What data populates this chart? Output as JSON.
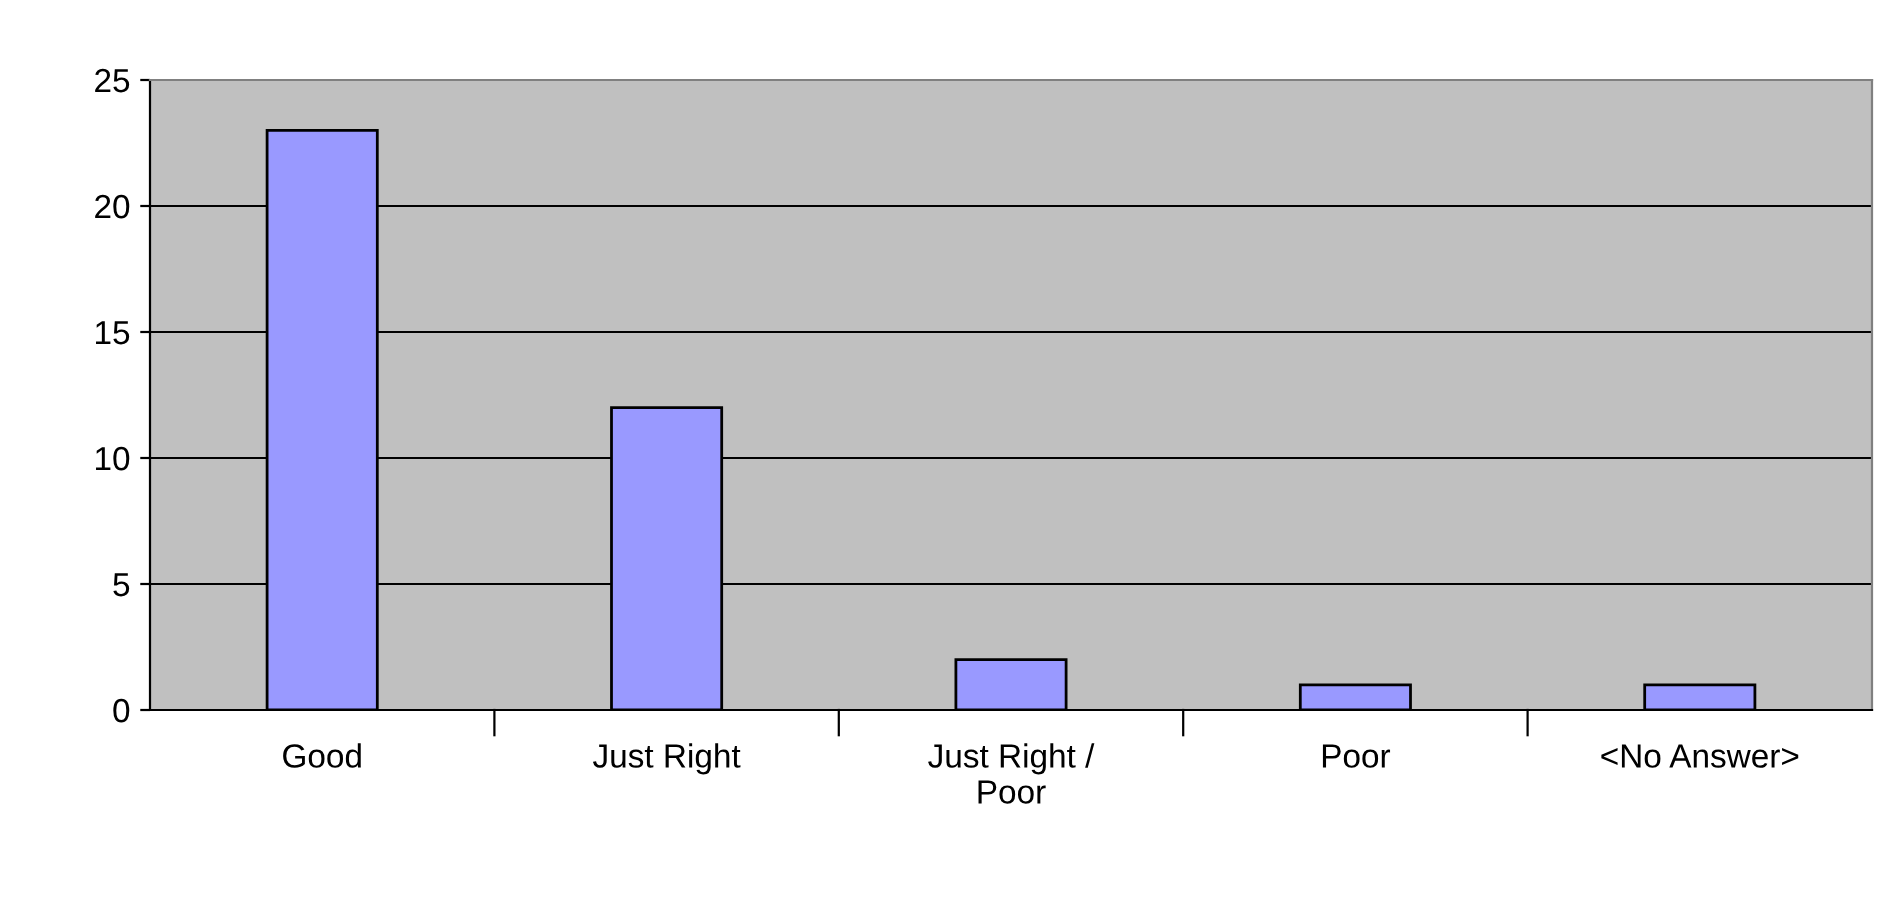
{
  "chart_data": {
    "type": "bar",
    "categories": [
      "Good",
      "Just Right",
      "Just Right /\nPoor",
      "Poor",
      "<No Answer>"
    ],
    "values": [
      23,
      12,
      2,
      1,
      1
    ],
    "color": "#9999ff",
    "ylim": [
      0,
      25
    ],
    "yticks": [
      0,
      5,
      10,
      15,
      20,
      25
    ],
    "grid": "y",
    "legend": false
  }
}
